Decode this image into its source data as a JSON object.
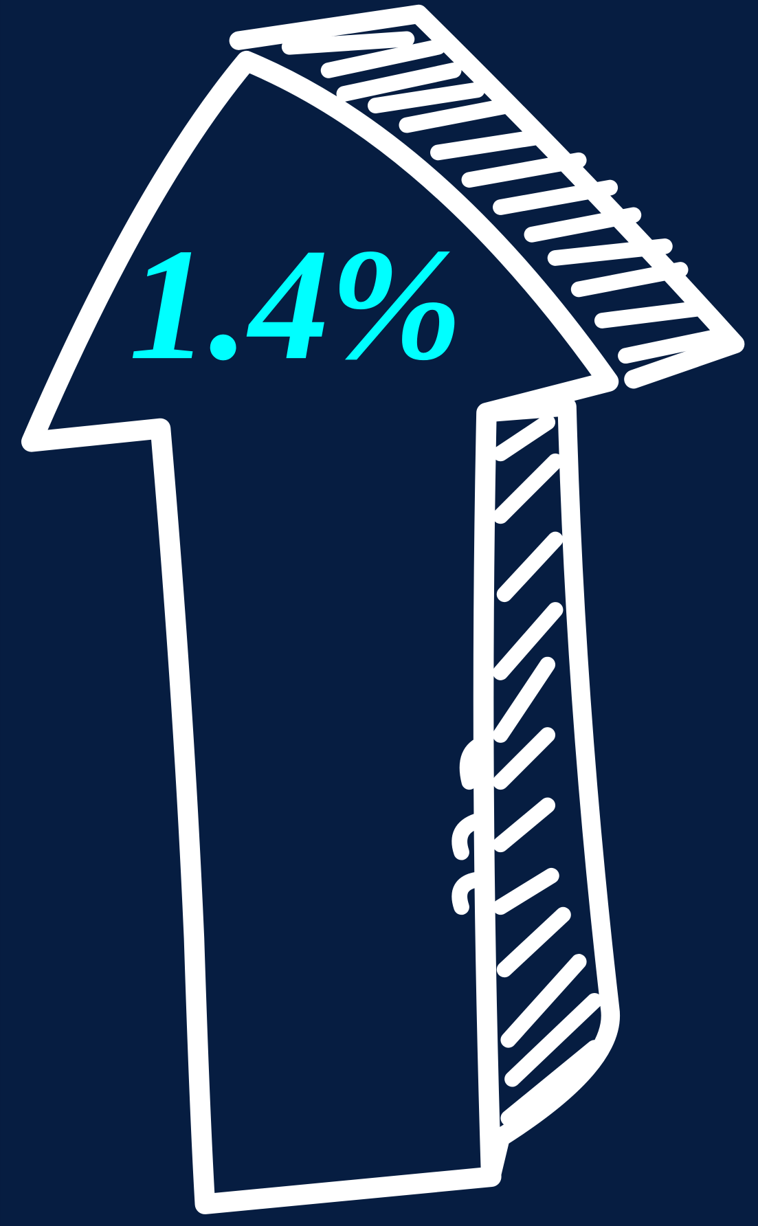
{
  "label": "1.4%"
}
